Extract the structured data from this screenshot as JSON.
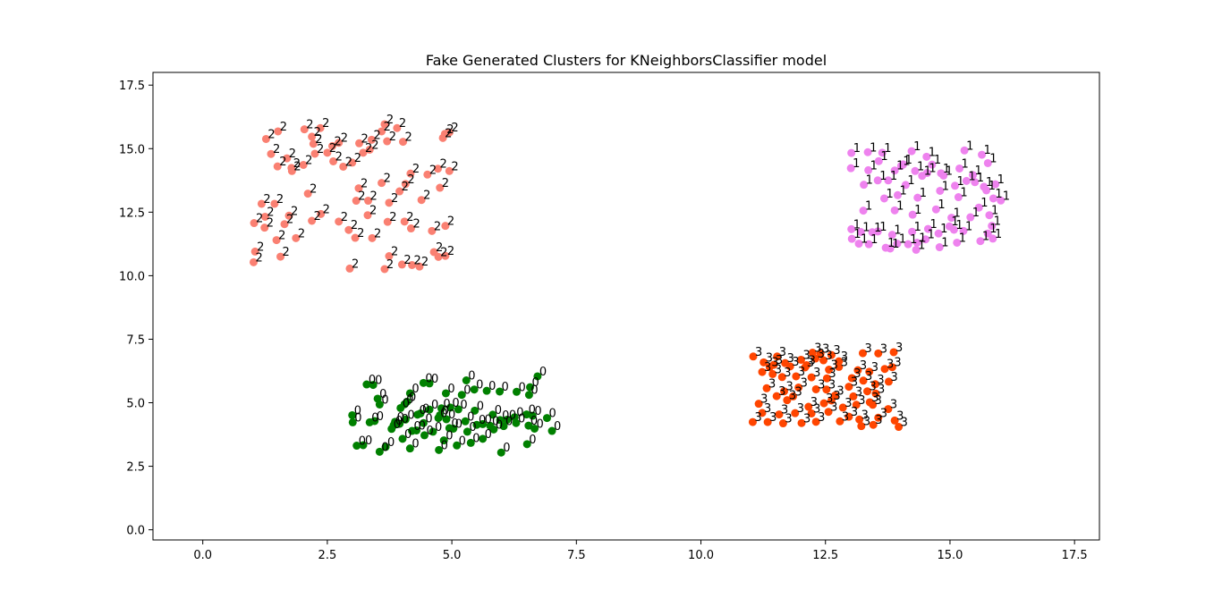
{
  "chart_data": {
    "type": "scatter",
    "title": "Fake Generated Clusters for KNeighborsClassifier model",
    "xlabel": "",
    "ylabel": "",
    "xlim": [
      -1,
      18
    ],
    "ylim": [
      -0.4,
      18
    ],
    "xticks": [
      0.0,
      2.5,
      5.0,
      7.5,
      10.0,
      12.5,
      15.0,
      17.5
    ],
    "xtick_labels": [
      "0.0",
      "2.5",
      "5.0",
      "7.5",
      "10.0",
      "12.5",
      "15.0",
      "17.5"
    ],
    "yticks": [
      0.0,
      2.5,
      5.0,
      7.5,
      10.0,
      12.5,
      15.0,
      17.5
    ],
    "ytick_labels": [
      "0.0",
      "2.5",
      "5.0",
      "7.5",
      "10.0",
      "12.5",
      "15.0",
      "17.5"
    ],
    "grid": false,
    "legend": "none",
    "series": [
      {
        "label": "0",
        "color": "#008000",
        "points": [
          [
            4.16,
            5.37
          ],
          [
            4.55,
            5.76
          ],
          [
            5.29,
            5.88
          ],
          [
            6.72,
            6.04
          ],
          [
            3.29,
            5.72
          ],
          [
            3.42,
            5.7
          ],
          [
            3.51,
            5.16
          ],
          [
            3.55,
            4.93
          ],
          [
            4.05,
            4.94
          ],
          [
            4.31,
            4.53
          ],
          [
            4.1,
            5.04
          ],
          [
            4.55,
            4.73
          ],
          [
            4.76,
            4.51
          ],
          [
            5.13,
            4.74
          ],
          [
            5.46,
            4.69
          ],
          [
            5.82,
            4.53
          ],
          [
            6.26,
            4.43
          ],
          [
            6.5,
            4.54
          ],
          [
            6.62,
            4.49
          ],
          [
            6.91,
            4.4
          ],
          [
            3.0,
            4.51
          ],
          [
            3.01,
            4.23
          ],
          [
            3.35,
            4.23
          ],
          [
            3.45,
            4.28
          ],
          [
            3.83,
            4.11
          ],
          [
            3.95,
            4.17
          ],
          [
            4.2,
            3.89
          ],
          [
            4.29,
            3.91
          ],
          [
            4.43,
            4.2
          ],
          [
            4.73,
            4.4
          ],
          [
            4.89,
            4.35
          ],
          [
            5.03,
            3.98
          ],
          [
            5.27,
            4.27
          ],
          [
            5.5,
            4.13
          ],
          [
            5.77,
            4.09
          ],
          [
            5.97,
            4.32
          ],
          [
            6.11,
            4.33
          ],
          [
            6.54,
            4.1
          ],
          [
            6.66,
            3.98
          ],
          [
            7.01,
            3.89
          ],
          [
            3.09,
            3.31
          ],
          [
            3.22,
            3.33
          ],
          [
            3.55,
            3.07
          ],
          [
            3.67,
            3.26
          ],
          [
            4.01,
            3.58
          ],
          [
            4.16,
            3.2
          ],
          [
            4.45,
            3.72
          ],
          [
            4.74,
            3.14
          ],
          [
            4.84,
            3.52
          ],
          [
            5.1,
            3.32
          ],
          [
            5.38,
            3.42
          ],
          [
            5.62,
            3.58
          ],
          [
            5.99,
            3.04
          ],
          [
            6.51,
            3.37
          ],
          [
            6.55,
            5.31
          ],
          [
            6.3,
            5.43
          ],
          [
            5.96,
            5.44
          ],
          [
            5.7,
            5.47
          ],
          [
            5.45,
            5.52
          ],
          [
            5.2,
            5.31
          ],
          [
            4.88,
            5.37
          ],
          [
            4.43,
            5.78
          ],
          [
            4.79,
            4.78
          ],
          [
            4.97,
            4.81
          ],
          [
            5.62,
            4.16
          ],
          [
            5.84,
            3.95
          ],
          [
            4.62,
            3.86
          ],
          [
            4.95,
            4.0
          ],
          [
            5.31,
            3.86
          ],
          [
            3.79,
            3.97
          ],
          [
            6.57,
            5.61
          ],
          [
            6.04,
            4.08
          ],
          [
            6.29,
            4.2
          ],
          [
            4.37,
            4.58
          ],
          [
            3.86,
            4.25
          ],
          [
            4.07,
            4.34
          ],
          [
            3.97,
            4.79
          ]
        ]
      },
      {
        "label": "1",
        "color": "#ee82ee",
        "points": [
          [
            13.02,
            14.83
          ],
          [
            13.35,
            14.86
          ],
          [
            13.64,
            14.84
          ],
          [
            14.23,
            14.9
          ],
          [
            14.53,
            14.68
          ],
          [
            15.29,
            14.93
          ],
          [
            15.64,
            14.76
          ],
          [
            13.01,
            14.23
          ],
          [
            13.36,
            14.15
          ],
          [
            13.57,
            14.51
          ],
          [
            13.89,
            14.14
          ],
          [
            14.02,
            14.32
          ],
          [
            14.3,
            14.12
          ],
          [
            14.54,
            14.04
          ],
          [
            14.82,
            14.03
          ],
          [
            15.19,
            14.22
          ],
          [
            15.46,
            13.96
          ],
          [
            15.76,
            14.43
          ],
          [
            13.27,
            13.58
          ],
          [
            13.55,
            13.75
          ],
          [
            13.76,
            13.75
          ],
          [
            14.11,
            13.57
          ],
          [
            14.44,
            13.93
          ],
          [
            14.87,
            13.94
          ],
          [
            15.1,
            13.54
          ],
          [
            15.33,
            13.73
          ],
          [
            15.91,
            13.6
          ],
          [
            13.68,
            13.04
          ],
          [
            13.95,
            13.17
          ],
          [
            14.35,
            13.07
          ],
          [
            14.8,
            13.34
          ],
          [
            15.17,
            13.09
          ],
          [
            15.73,
            13.36
          ],
          [
            15.87,
            13.04
          ],
          [
            16.02,
            12.96
          ],
          [
            13.26,
            12.56
          ],
          [
            13.89,
            12.57
          ],
          [
            14.25,
            12.4
          ],
          [
            14.72,
            12.61
          ],
          [
            15.03,
            12.28
          ],
          [
            15.58,
            12.68
          ],
          [
            15.79,
            12.38
          ],
          [
            13.02,
            11.83
          ],
          [
            13.21,
            11.72
          ],
          [
            13.55,
            11.74
          ],
          [
            13.84,
            11.61
          ],
          [
            14.24,
            11.73
          ],
          [
            14.56,
            11.84
          ],
          [
            15.08,
            11.81
          ],
          [
            15.27,
            11.76
          ],
          [
            15.76,
            11.66
          ],
          [
            13.03,
            11.45
          ],
          [
            13.17,
            11.26
          ],
          [
            13.37,
            11.24
          ],
          [
            13.71,
            11.1
          ],
          [
            13.94,
            11.26
          ],
          [
            14.16,
            11.24
          ],
          [
            14.51,
            11.43
          ],
          [
            14.79,
            11.12
          ],
          [
            15.14,
            11.3
          ],
          [
            15.61,
            11.36
          ],
          [
            15.86,
            11.46
          ],
          [
            14.32,
            11.02
          ],
          [
            13.8,
            11.07
          ],
          [
            13.44,
            11.71
          ],
          [
            15.41,
            12.3
          ],
          [
            15.84,
            11.96
          ],
          [
            14.77,
            11.66
          ],
          [
            14.99,
            11.94
          ],
          [
            14.34,
            11.3
          ],
          [
            15.5,
            13.68
          ],
          [
            15.68,
            13.5
          ],
          [
            14.06,
            14.38
          ],
          [
            14.64,
            14.37
          ]
        ]
      },
      {
        "label": "2",
        "color": "#fa8072",
        "points": [
          [
            1.51,
            15.68
          ],
          [
            2.04,
            15.76
          ],
          [
            2.36,
            15.81
          ],
          [
            3.65,
            15.96
          ],
          [
            3.9,
            15.81
          ],
          [
            4.86,
            15.58
          ],
          [
            4.95,
            15.64
          ],
          [
            1.27,
            15.38
          ],
          [
            2.19,
            15.47
          ],
          [
            3.14,
            15.21
          ],
          [
            3.39,
            15.35
          ],
          [
            3.59,
            15.68
          ],
          [
            3.7,
            15.29
          ],
          [
            4.02,
            15.27
          ],
          [
            4.82,
            15.42
          ],
          [
            2.22,
            15.19
          ],
          [
            2.6,
            15.1
          ],
          [
            2.73,
            15.23
          ],
          [
            1.37,
            14.79
          ],
          [
            1.69,
            14.62
          ],
          [
            2.25,
            14.8
          ],
          [
            2.5,
            14.84
          ],
          [
            3.22,
            14.84
          ],
          [
            3.35,
            14.96
          ],
          [
            1.5,
            14.3
          ],
          [
            1.78,
            14.24
          ],
          [
            2.02,
            14.36
          ],
          [
            2.62,
            14.5
          ],
          [
            2.82,
            14.29
          ],
          [
            3.0,
            14.45
          ],
          [
            1.79,
            14.12
          ],
          [
            4.17,
            14.02
          ],
          [
            4.51,
            13.98
          ],
          [
            4.72,
            14.21
          ],
          [
            4.95,
            14.12
          ],
          [
            3.13,
            13.44
          ],
          [
            3.59,
            13.65
          ],
          [
            3.95,
            13.32
          ],
          [
            4.07,
            13.61
          ],
          [
            4.76,
            13.46
          ],
          [
            2.11,
            13.23
          ],
          [
            3.08,
            12.95
          ],
          [
            3.32,
            12.95
          ],
          [
            3.74,
            12.87
          ],
          [
            4.39,
            12.98
          ],
          [
            1.18,
            12.83
          ],
          [
            1.44,
            12.83
          ],
          [
            1.25,
            12.32
          ],
          [
            1.73,
            12.36
          ],
          [
            2.37,
            12.43
          ],
          [
            3.31,
            12.38
          ],
          [
            1.03,
            12.07
          ],
          [
            1.24,
            11.89
          ],
          [
            1.64,
            12.03
          ],
          [
            2.19,
            12.16
          ],
          [
            2.73,
            12.13
          ],
          [
            3.71,
            12.12
          ],
          [
            4.05,
            12.13
          ],
          [
            4.18,
            11.86
          ],
          [
            4.6,
            11.76
          ],
          [
            4.87,
            11.96
          ],
          [
            1.48,
            11.4
          ],
          [
            1.87,
            11.48
          ],
          [
            2.93,
            11.8
          ],
          [
            3.06,
            11.49
          ],
          [
            3.4,
            11.48
          ],
          [
            1.05,
            10.95
          ],
          [
            1.56,
            10.75
          ],
          [
            1.02,
            10.53
          ],
          [
            2.95,
            10.28
          ],
          [
            3.65,
            10.26
          ],
          [
            3.74,
            10.77
          ],
          [
            4.0,
            10.44
          ],
          [
            4.2,
            10.42
          ],
          [
            4.35,
            10.36
          ],
          [
            4.64,
            10.93
          ],
          [
            4.73,
            10.74
          ],
          [
            4.87,
            10.78
          ]
        ]
      },
      {
        "label": "3",
        "color": "#ff4500",
        "points": [
          [
            11.05,
            6.82
          ],
          [
            11.53,
            6.82
          ],
          [
            12.24,
            6.97
          ],
          [
            12.4,
            6.93
          ],
          [
            12.62,
            6.88
          ],
          [
            13.25,
            6.95
          ],
          [
            13.56,
            6.94
          ],
          [
            13.87,
            6.99
          ],
          [
            11.69,
            6.56
          ],
          [
            12.01,
            6.69
          ],
          [
            12.3,
            6.74
          ],
          [
            12.46,
            6.67
          ],
          [
            12.77,
            6.63
          ],
          [
            11.26,
            6.59
          ],
          [
            11.46,
            6.49
          ],
          [
            11.79,
            6.43
          ],
          [
            12.09,
            6.39
          ],
          [
            12.57,
            6.3
          ],
          [
            12.77,
            6.41
          ],
          [
            13.15,
            6.28
          ],
          [
            13.38,
            6.22
          ],
          [
            13.69,
            6.33
          ],
          [
            13.84,
            6.4
          ],
          [
            11.23,
            6.21
          ],
          [
            11.44,
            6.13
          ],
          [
            11.63,
            6.01
          ],
          [
            11.91,
            6.04
          ],
          [
            12.22,
            6.0
          ],
          [
            12.53,
            5.96
          ],
          [
            13.03,
            5.97
          ],
          [
            13.26,
            5.87
          ],
          [
            13.5,
            5.73
          ],
          [
            13.77,
            5.83
          ],
          [
            11.32,
            5.57
          ],
          [
            11.67,
            5.45
          ],
          [
            11.96,
            5.6
          ],
          [
            12.31,
            5.53
          ],
          [
            12.69,
            5.28
          ],
          [
            12.97,
            5.63
          ],
          [
            13.34,
            5.45
          ],
          [
            13.51,
            5.36
          ],
          [
            11.16,
            4.96
          ],
          [
            11.52,
            5.26
          ],
          [
            11.85,
            5.25
          ],
          [
            12.16,
            4.84
          ],
          [
            12.47,
            4.98
          ],
          [
            12.85,
            4.81
          ],
          [
            13.12,
            4.92
          ],
          [
            13.45,
            4.92
          ],
          [
            13.76,
            4.75
          ],
          [
            11.23,
            4.6
          ],
          [
            11.57,
            4.54
          ],
          [
            11.89,
            4.59
          ],
          [
            12.22,
            4.58
          ],
          [
            12.56,
            4.64
          ],
          [
            12.97,
            4.45
          ],
          [
            13.18,
            4.34
          ],
          [
            13.56,
            4.41
          ],
          [
            11.04,
            4.24
          ],
          [
            11.34,
            4.24
          ],
          [
            11.65,
            4.19
          ],
          [
            12.02,
            4.2
          ],
          [
            12.31,
            4.25
          ],
          [
            12.79,
            4.27
          ],
          [
            13.22,
            4.08
          ],
          [
            13.46,
            4.13
          ],
          [
            13.89,
            4.3
          ],
          [
            13.97,
            4.05
          ],
          [
            12.12,
            6.48
          ],
          [
            11.38,
            6.4
          ],
          [
            12.52,
            5.52
          ],
          [
            13.06,
            5.25
          ],
          [
            11.73,
            5.1
          ],
          [
            12.62,
            5.09
          ],
          [
            13.39,
            5.02
          ]
        ]
      }
    ]
  }
}
